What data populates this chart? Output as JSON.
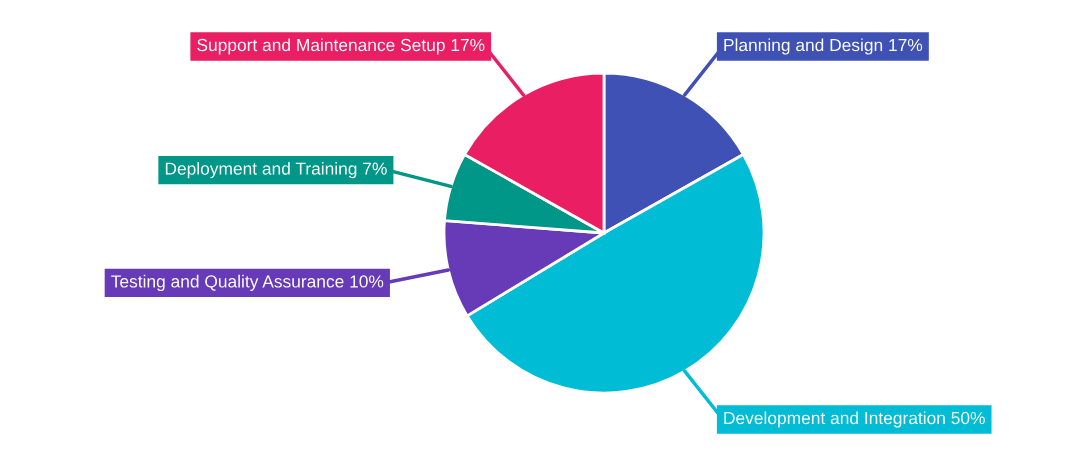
{
  "chart_data": {
    "type": "pie",
    "categories": [
      "Planning and Design",
      "Development and Integration",
      "Testing and Quality Assurance",
      "Deployment and Training",
      "Support and Maintenance Setup"
    ],
    "values": [
      17,
      50,
      10,
      7,
      17
    ],
    "value_labels": [
      "17%",
      "50%",
      "10%",
      "7%",
      "17%"
    ],
    "colors": [
      "#3f51b5",
      "#00bcd4",
      "#673ab7",
      "#009688",
      "#e91e63"
    ],
    "legend": false
  }
}
